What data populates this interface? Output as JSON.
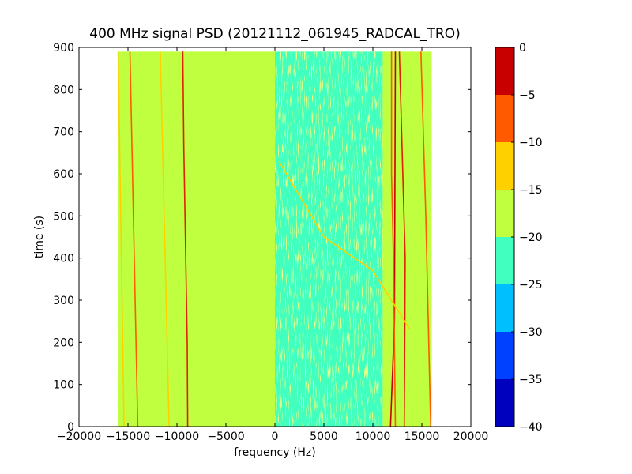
{
  "chart_data": {
    "type": "heatmap",
    "title": "400 MHz signal PSD (20121112_061945_RADCAL_TRO)",
    "xlabel": "frequency (Hz)",
    "ylabel": "time (s)",
    "xlim": [
      -20000,
      20000
    ],
    "ylim": [
      0,
      900
    ],
    "x_ticks": [
      -20000,
      -15000,
      -10000,
      -5000,
      0,
      5000,
      10000,
      15000,
      20000
    ],
    "x_tick_labels": [
      "−20000",
      "−15000",
      "−10000",
      "−5000",
      "0",
      "5000",
      "10000",
      "15000",
      "20000"
    ],
    "y_ticks": [
      0,
      100,
      200,
      300,
      400,
      500,
      600,
      700,
      800,
      900
    ],
    "y_tick_labels": [
      "0",
      "100",
      "200",
      "300",
      "400",
      "500",
      "600",
      "700",
      "800",
      "900"
    ],
    "data_extent": {
      "freq": [
        -16000,
        16000
      ],
      "time": [
        0,
        890
      ]
    },
    "colorbar": {
      "levels": [
        -40,
        -35,
        -30,
        -25,
        -20,
        -15,
        -10,
        -5,
        0
      ],
      "tick_labels": [
        "−40",
        "−35",
        "−30",
        "−25",
        "−20",
        "−15",
        "−10",
        "−5",
        "0"
      ],
      "colors": [
        "#0000bf",
        "#0040ff",
        "#00bfff",
        "#40ffbf",
        "#bfff40",
        "#ffd000",
        "#ff5a00",
        "#c80000"
      ]
    },
    "regions": [
      {
        "from_hz": -16000,
        "to_hz": 0,
        "level_color": "#bfff40"
      },
      {
        "from_hz": 0,
        "to_hz": 11000,
        "level_color": "#40ffbf"
      },
      {
        "from_hz": 11000,
        "to_hz": 16000,
        "level_color": "#bfff40"
      }
    ],
    "signal_tracks": [
      {
        "points": [
          [
            -14000,
            0
          ],
          [
            -14800,
            890
          ]
        ],
        "color": "#ff5a00"
      },
      {
        "points": [
          [
            -15400,
            0
          ],
          [
            -16000,
            890
          ]
        ],
        "color": "#ffd000"
      },
      {
        "points": [
          [
            -10800,
            0
          ],
          [
            -11700,
            890
          ]
        ],
        "color": "#ffd000"
      },
      {
        "points": [
          [
            -8900,
            0
          ],
          [
            -8950,
            200
          ],
          [
            -9300,
            660
          ],
          [
            -9400,
            890
          ]
        ],
        "color": "#e02000"
      },
      {
        "points": [
          [
            11800,
            0
          ],
          [
            12200,
            250
          ],
          [
            12300,
            890
          ]
        ],
        "color": "#c80000"
      },
      {
        "points": [
          [
            13200,
            0
          ],
          [
            13300,
            400
          ],
          [
            12700,
            890
          ]
        ],
        "color": "#e02000"
      },
      {
        "points": [
          [
            15900,
            0
          ],
          [
            15400,
            500
          ],
          [
            14900,
            890
          ]
        ],
        "color": "#ff5a00"
      },
      {
        "points": [
          [
            11900,
            890
          ],
          [
            11900,
            600
          ],
          [
            12100,
            400
          ],
          [
            12300,
            0
          ]
        ],
        "color": "#ff5a00"
      },
      {
        "points": [
          [
            400,
            630
          ],
          [
            5000,
            450
          ],
          [
            10000,
            370
          ],
          [
            13800,
            230
          ]
        ],
        "color": "#ffd000"
      }
    ]
  }
}
